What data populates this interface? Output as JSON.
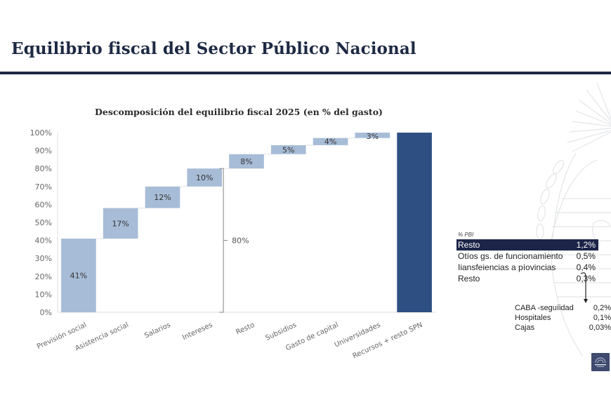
{
  "header": {
    "title": "Equilibrio fiscal del Sector Público Nacional"
  },
  "chart_data": {
    "type": "bar",
    "subtype": "waterfall",
    "title": "Descomposición del equilibrio fiscal 2025 (en % del gasto)",
    "xlabel": "",
    "ylabel": "",
    "ylim": [
      0,
      100
    ],
    "yticks": [
      "0%",
      "10%",
      "20%",
      "30%",
      "40%",
      "50%",
      "60%",
      "70%",
      "80%",
      "90%",
      "100%"
    ],
    "grid": false,
    "categories": [
      "Previsión social",
      "Asistencia social",
      "Salarios",
      "Intereses",
      "Resto",
      "Subsidios",
      "Gasto de capital",
      "Universidades",
      "Recursos + resto SPN"
    ],
    "values": [
      41,
      17,
      12,
      10,
      8,
      5,
      4,
      3,
      100
    ],
    "bases": [
      0,
      41,
      58,
      70,
      80,
      88,
      93,
      97,
      0
    ],
    "data_labels": [
      "41%",
      "17%",
      "12%",
      "10%",
      "8%",
      "5%",
      "4%",
      "3%",
      ""
    ],
    "is_total": [
      false,
      false,
      false,
      false,
      false,
      false,
      false,
      false,
      true
    ],
    "colors": {
      "step": "#a7bcd6",
      "total": "#2d4f82",
      "text": "#333333",
      "axis": "#666666"
    },
    "annotation": {
      "label": "80%",
      "range": [
        0,
        80
      ],
      "note": "bracket spanning first four categories"
    }
  },
  "pbi_panel": {
    "unit": "% PBI",
    "rows": [
      {
        "label": "Resto",
        "value": "1,2%",
        "highlight": true
      },
      {
        "label": "Otíos gs. de funcionamiento",
        "value": "0,5%"
      },
      {
        "label": "Iiansfeiencias a píovincias",
        "value": "0,4%"
      },
      {
        "label": "Resto",
        "value": "0,3%"
      }
    ],
    "breakdown": [
      {
        "label": "CABA -seguíidad",
        "value": "0,2%"
      },
      {
        "label": "Hospitales",
        "value": "0,1%"
      },
      {
        "label": "Cajas",
        "value": "0,03%"
      }
    ]
  },
  "branding": {
    "emblem_icon": "coat-of-arms-watermark",
    "logo_icon": "ministry-logo",
    "accent": "#1e2a44"
  }
}
